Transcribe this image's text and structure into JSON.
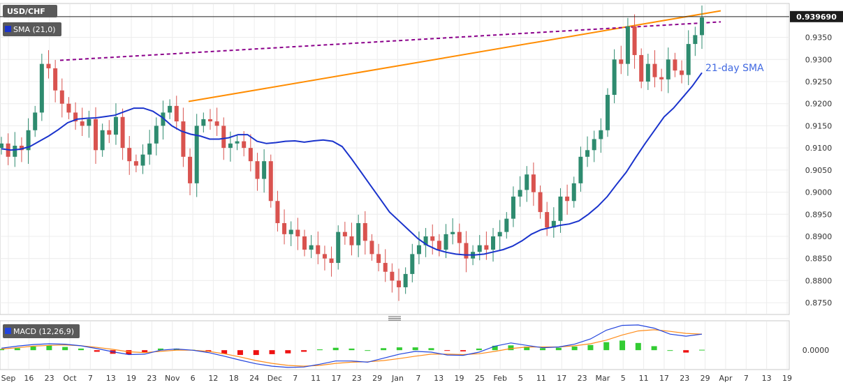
{
  "symbol": "USD/CHF",
  "sma_tag": "SMA (21,0)",
  "macd_tag": "MACD (12,26,9)",
  "current_price_label": "0.939690",
  "sma_annotation": "21-day SMA",
  "colors": {
    "up": "#2e8b6f",
    "down": "#d9534f",
    "sma": "#1a33cc",
    "trendline": "#ff8c00",
    "dotted": "#8b008b",
    "macd": "#2244dd",
    "signal": "#ff8c1a",
    "hist_up": "#33cc33",
    "hist_down": "#ee1111"
  },
  "chart_data": [
    {
      "type": "candlestick",
      "title": "USD/CHF",
      "ylim": [
        0.8725,
        0.9425
      ],
      "y_ticks": [
        "0.8750",
        "0.8800",
        "0.8850",
        "0.8900",
        "0.8950",
        "0.9000",
        "0.9050",
        "0.9100",
        "0.9150",
        "0.9200",
        "0.9250",
        "0.9300",
        "0.9350"
      ],
      "x_tick_labels": [
        "Sep",
        "16",
        "23",
        "Oct",
        "7",
        "13",
        "19",
        "23",
        "Nov",
        "6",
        "12",
        "18",
        "24",
        "Dec",
        "7",
        "11",
        "17",
        "23",
        "29",
        "Jan",
        "7",
        "13",
        "19",
        "25",
        "Feb",
        "5",
        "11",
        "17",
        "23",
        "Mar",
        "5",
        "11",
        "17",
        "23",
        "29",
        "Apr",
        "7",
        "13",
        "19"
      ],
      "daily_close": [
        0.911,
        0.908,
        0.9105,
        0.9095,
        0.914,
        0.918,
        0.929,
        0.928,
        0.923,
        0.92,
        0.918,
        0.916,
        0.915,
        0.9165,
        0.9095,
        0.914,
        0.913,
        0.917,
        0.91,
        0.907,
        0.906,
        0.9085,
        0.911,
        0.915,
        0.918,
        0.9195,
        0.916,
        0.908,
        0.902,
        0.915,
        0.9165,
        0.916,
        0.915,
        0.91,
        0.911,
        0.9115,
        0.91,
        0.907,
        0.903,
        0.907,
        0.898,
        0.893,
        0.8905,
        0.8915,
        0.89,
        0.887,
        0.888,
        0.886,
        0.885,
        0.884,
        0.891,
        0.89,
        0.888,
        0.893,
        0.889,
        0.886,
        0.884,
        0.882,
        0.88,
        0.8785,
        0.8815,
        0.886,
        0.888,
        0.89,
        0.889,
        0.887,
        0.8905,
        0.891,
        0.8885,
        0.885,
        0.8865,
        0.888,
        0.887,
        0.89,
        0.891,
        0.894,
        0.899,
        0.9005,
        0.904,
        0.9,
        0.8955,
        0.892,
        0.8935,
        0.899,
        0.898,
        0.902,
        0.908,
        0.9095,
        0.912,
        0.914,
        0.922,
        0.93,
        0.929,
        0.9375,
        0.931,
        0.925,
        0.929,
        0.926,
        0.9255,
        0.93,
        0.9275,
        0.9265,
        0.9335,
        0.9355,
        0.9395
      ],
      "sma21": [
        0.9098,
        0.9095,
        0.9097,
        0.9103,
        0.9115,
        0.9127,
        0.9141,
        0.9157,
        0.9165,
        0.9167,
        0.9168,
        0.9171,
        0.9174,
        0.9182,
        0.919,
        0.919,
        0.9183,
        0.9169,
        0.915,
        0.9138,
        0.9131,
        0.9127,
        0.912,
        0.912,
        0.9123,
        0.913,
        0.913,
        0.9115,
        0.911,
        0.9112,
        0.9115,
        0.9116,
        0.9113,
        0.9116,
        0.9118,
        0.9115,
        0.9103,
        0.9075,
        0.9045,
        0.9015,
        0.8985,
        0.8955,
        0.8935,
        0.8915,
        0.8895,
        0.888,
        0.887,
        0.8864,
        0.886,
        0.8858,
        0.8858,
        0.886,
        0.8865,
        0.887,
        0.8878,
        0.889,
        0.8905,
        0.8915,
        0.892,
        0.8925,
        0.8928,
        0.8935,
        0.895,
        0.8968,
        0.899,
        0.9018,
        0.9045,
        0.9078,
        0.911,
        0.914,
        0.917,
        0.919,
        0.9215,
        0.924,
        0.927
      ],
      "sma_start_index": 5,
      "last_price": 0.93969,
      "trendlines": [
        {
          "kind": "solid",
          "from": [
            0.9205,
            "Nov 1"
          ],
          "to": [
            0.941,
            "Apr 1"
          ]
        },
        {
          "kind": "dashed",
          "from": [
            0.9298,
            "Sep 26"
          ],
          "to": [
            0.9385,
            "Apr 1"
          ]
        }
      ]
    },
    {
      "type": "macd",
      "title": "MACD (12,26,9)",
      "ylim": [
        -0.0045,
        0.007
      ],
      "y_ticks": [
        "0.0000"
      ],
      "macd": [
        0.0005,
        0.001,
        0.0014,
        0.0016,
        0.0015,
        0.0011,
        0.0004,
        -0.0004,
        -0.0011,
        -0.001,
        0.0,
        0.0003,
        0.0,
        -0.0006,
        -0.0015,
        -0.0025,
        -0.0034,
        -0.004,
        -0.0043,
        -0.0042,
        -0.0035,
        -0.0027,
        -0.0027,
        -0.003,
        -0.002,
        -0.001,
        -0.0003,
        -0.0005,
        -0.0012,
        -0.0013,
        -0.0005,
        0.001,
        0.0018,
        0.0012,
        0.0006,
        0.0008,
        0.0015,
        0.0028,
        0.005,
        0.0062,
        0.0063,
        0.0055,
        0.004,
        0.0035,
        0.004
      ],
      "signal": [
        0.0003,
        0.0006,
        0.001,
        0.0012,
        0.0013,
        0.0011,
        0.0007,
        0.0002,
        -0.0004,
        -0.0006,
        -0.0003,
        0.0,
        0.0,
        -0.0003,
        -0.0009,
        -0.0017,
        -0.0026,
        -0.0033,
        -0.0038,
        -0.004,
        -0.0038,
        -0.0033,
        -0.003,
        -0.0029,
        -0.0026,
        -0.0021,
        -0.0015,
        -0.001,
        -0.001,
        -0.0011,
        -0.0009,
        -0.0003,
        0.0004,
        0.0008,
        0.0008,
        0.0008,
        0.0011,
        0.0016,
        0.0025,
        0.0038,
        0.0048,
        0.0051,
        0.0047,
        0.0042,
        0.004
      ],
      "histogram": [
        0.0003,
        0.0005,
        0.0009,
        0.0012,
        0.0008,
        0.0004,
        -0.0004,
        -0.0009,
        -0.0011,
        -0.0006,
        0.0004,
        0.0004,
        0.0001,
        -0.0004,
        -0.0009,
        -0.0012,
        -0.0012,
        -0.001,
        -0.0008,
        -0.0004,
        0.0002,
        0.0006,
        0.0004,
        0.0,
        0.0005,
        0.0007,
        0.0007,
        0.0005,
        -0.0001,
        -0.0003,
        0.0004,
        0.0011,
        0.0012,
        0.0009,
        0.0005,
        0.0006,
        0.0009,
        0.0013,
        0.002,
        0.0024,
        0.0018,
        0.001,
        0.0,
        -0.0006,
        0.0001
      ]
    }
  ]
}
